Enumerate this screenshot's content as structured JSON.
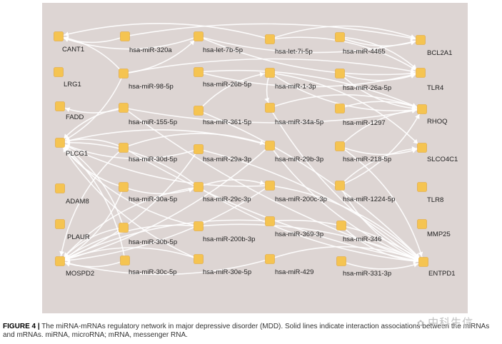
{
  "network": {
    "node_color": "#f5c451",
    "edge_color": "#ffffff",
    "background": "#ddd5d3",
    "nodes": [
      {
        "id": "CANT1",
        "label": "CANT1"
      },
      {
        "id": "LRG1",
        "label": "LRG1"
      },
      {
        "id": "FADD",
        "label": "FADD"
      },
      {
        "id": "PLCG1",
        "label": "PLCG1"
      },
      {
        "id": "ADAM8",
        "label": "ADAM8"
      },
      {
        "id": "PLAUR",
        "label": "PLAUR"
      },
      {
        "id": "MOSPD2",
        "label": "MOSPD2"
      },
      {
        "id": "m320a",
        "label": "hsa-miR-320a"
      },
      {
        "id": "m98",
        "label": "hsa-miR-98-5p"
      },
      {
        "id": "m155",
        "label": "hsa-miR-155-5p"
      },
      {
        "id": "m30d",
        "label": "hsa-miR-30d-5p"
      },
      {
        "id": "m30a",
        "label": "hsa-miR-30a-5p"
      },
      {
        "id": "m30b",
        "label": "hsa-miR-30b-5p"
      },
      {
        "id": "m30c",
        "label": "hsa-miR-30c-5p"
      },
      {
        "id": "let7b",
        "label": "hsa-let-7b-5p"
      },
      {
        "id": "m26b",
        "label": "hsa-miR-26b-5p"
      },
      {
        "id": "m361",
        "label": "hsa-miR-361-5p"
      },
      {
        "id": "m29a",
        "label": "hsa-miR-29a-3p"
      },
      {
        "id": "m29c",
        "label": "hsa-miR-29c-3p"
      },
      {
        "id": "m200b",
        "label": "hsa-miR-200b-3p"
      },
      {
        "id": "m30e",
        "label": "hsa-miR-30e-5p"
      },
      {
        "id": "let7i",
        "label": "hsa-let-7i-5p"
      },
      {
        "id": "m1",
        "label": "hsa-miR-1-3p"
      },
      {
        "id": "m34a",
        "label": "hsa-miR-34a-5p"
      },
      {
        "id": "m29b",
        "label": "hsa-miR-29b-3p"
      },
      {
        "id": "m200c",
        "label": "hsa-miR-200c-3p"
      },
      {
        "id": "m369",
        "label": "hsa-miR-369-3p"
      },
      {
        "id": "m429",
        "label": "hsa-miR-429"
      },
      {
        "id": "m4465",
        "label": "hsa-miR-4465"
      },
      {
        "id": "m26a",
        "label": "hsa-miR-26a-5p"
      },
      {
        "id": "m1297",
        "label": "hsa-miR-1297"
      },
      {
        "id": "m218",
        "label": "hsa-miR-218-5p"
      },
      {
        "id": "m1224",
        "label": "hsa-miR-1224-5p"
      },
      {
        "id": "m346",
        "label": "hsa-miR-346"
      },
      {
        "id": "m331",
        "label": "hsa-miR-331-3p"
      },
      {
        "id": "BCL2A1",
        "label": "BCL2A1"
      },
      {
        "id": "TLR4",
        "label": "TLR4"
      },
      {
        "id": "RHOQ",
        "label": "RHOQ"
      },
      {
        "id": "SLCO4C1",
        "label": "SLCO4C1"
      },
      {
        "id": "TLR8",
        "label": "TLR8"
      },
      {
        "id": "MMP25",
        "label": "MMP25"
      },
      {
        "id": "ENTPD1",
        "label": "ENTPD1"
      }
    ],
    "edges": [
      [
        "m320a",
        "CANT1"
      ],
      [
        "m98",
        "CANT1"
      ],
      [
        "let7b",
        "CANT1"
      ],
      [
        "let7i",
        "CANT1"
      ],
      [
        "m320a",
        "BCL2A1"
      ],
      [
        "let7b",
        "BCL2A1"
      ],
      [
        "let7i",
        "BCL2A1"
      ],
      [
        "m4465",
        "BCL2A1"
      ],
      [
        "m98",
        "TLR4"
      ],
      [
        "let7b",
        "TLR4"
      ],
      [
        "let7i",
        "TLR4"
      ],
      [
        "m26b",
        "TLR4"
      ],
      [
        "m4465",
        "TLR4"
      ],
      [
        "m26a",
        "TLR4"
      ],
      [
        "m26b",
        "RHOQ"
      ],
      [
        "m1",
        "RHOQ"
      ],
      [
        "m34a",
        "RHOQ"
      ],
      [
        "m26a",
        "RHOQ"
      ],
      [
        "m1297",
        "RHOQ"
      ],
      [
        "m155",
        "RHOQ"
      ],
      [
        "m218",
        "RHOQ"
      ],
      [
        "m1224",
        "RHOQ"
      ],
      [
        "m155",
        "FADD"
      ],
      [
        "m155",
        "PLCG1"
      ],
      [
        "m98",
        "PLCG1"
      ],
      [
        "m30d",
        "PLCG1"
      ],
      [
        "m29a",
        "PLCG1"
      ],
      [
        "m29b",
        "PLCG1"
      ],
      [
        "m30a",
        "PLCG1"
      ],
      [
        "m29c",
        "PLCG1"
      ],
      [
        "m200c",
        "PLCG1"
      ],
      [
        "m30b",
        "PLCG1"
      ],
      [
        "m200b",
        "PLCG1"
      ],
      [
        "m30c",
        "PLCG1"
      ],
      [
        "m30e",
        "PLCG1"
      ],
      [
        "m30d",
        "MOSPD2"
      ],
      [
        "m30a",
        "MOSPD2"
      ],
      [
        "m30b",
        "MOSPD2"
      ],
      [
        "m30c",
        "MOSPD2"
      ],
      [
        "m30e",
        "MOSPD2"
      ],
      [
        "m29a",
        "MOSPD2"
      ],
      [
        "m29c",
        "MOSPD2"
      ],
      [
        "m29b",
        "MOSPD2"
      ],
      [
        "m200b",
        "MOSPD2"
      ],
      [
        "m200c",
        "MOSPD2"
      ],
      [
        "m369",
        "MOSPD2"
      ],
      [
        "m429",
        "MOSPD2"
      ],
      [
        "m155",
        "ENTPD1"
      ],
      [
        "m361",
        "ENTPD1"
      ],
      [
        "m34a",
        "ENTPD1"
      ],
      [
        "m29a",
        "ENTPD1"
      ],
      [
        "m29b",
        "ENTPD1"
      ],
      [
        "m218",
        "ENTPD1"
      ],
      [
        "m30d",
        "ENTPD1"
      ],
      [
        "m200c",
        "ENTPD1"
      ],
      [
        "m1224",
        "ENTPD1"
      ],
      [
        "m369",
        "ENTPD1"
      ],
      [
        "m346",
        "ENTPD1"
      ],
      [
        "m429",
        "ENTPD1"
      ],
      [
        "m331",
        "ENTPD1"
      ],
      [
        "m200b",
        "ENTPD1"
      ],
      [
        "m29c",
        "ENTPD1"
      ],
      [
        "m1",
        "SLCO4C1"
      ],
      [
        "m218",
        "SLCO4C1"
      ],
      [
        "m1224",
        "SLCO4C1"
      ],
      [
        "m98",
        "let7b"
      ],
      [
        "m361",
        "m1"
      ],
      [
        "m1",
        "m34a"
      ],
      [
        "m30d",
        "m29b"
      ],
      [
        "m30a",
        "m29c"
      ],
      [
        "m29c",
        "m200c"
      ]
    ]
  },
  "caption": {
    "figure_label": "FIGURE 4 |",
    "text": " The miRNA-mRNAs regulatory network in major depressive disorder (MDD). Solid lines indicate interaction associations between the miRNAs and mRNAs. miRNA, microRNA; mRNA, messenger RNA."
  },
  "watermark": {
    "icon": "wechat-icon",
    "text": "中科生信"
  }
}
